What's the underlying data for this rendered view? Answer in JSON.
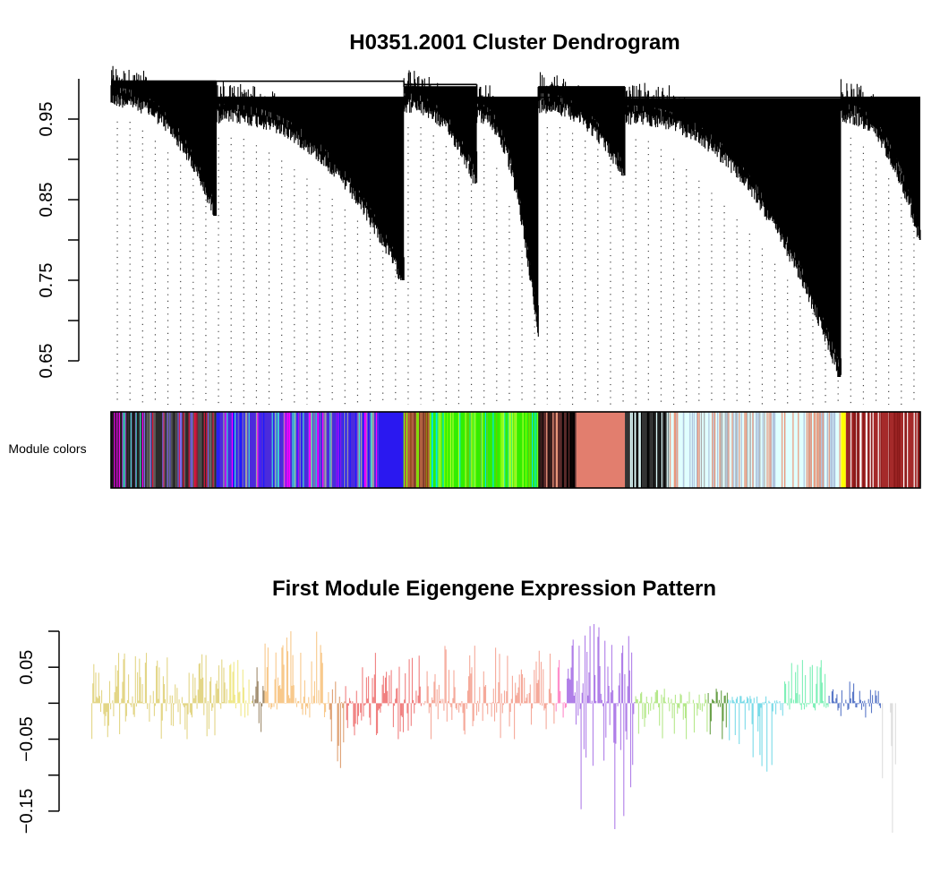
{
  "chart_data": [
    {
      "type": "dendrogram",
      "title": "H0351.2001 Cluster Dendrogram",
      "ylim": [
        0.62,
        1.0
      ],
      "yticks": [
        0.65,
        0.75,
        0.85,
        0.95
      ],
      "ytick_labels": [
        "0.65",
        "0.75",
        "0.85",
        "0.95"
      ],
      "color_bar_label": "Module colors",
      "top_merges": [
        {
          "name": "group-a",
          "members": [
            "branch-1",
            "branch-2"
          ],
          "height": 0.997
        },
        {
          "name": "group-b",
          "members": [
            "branch-3",
            "branch-4"
          ],
          "height": 0.993
        },
        {
          "name": "group-c",
          "members": [
            "branch-5",
            "branch-6"
          ],
          "height": 0.99
        },
        {
          "name": "group-d",
          "members": [
            "group-c",
            "branch-7"
          ],
          "height": 0.977
        }
      ],
      "branches": [
        {
          "name": "branch-1",
          "range": [
            0.0,
            0.13
          ],
          "top": 0.997,
          "min_leaf": 0.83
        },
        {
          "name": "branch-2",
          "range": [
            0.13,
            0.362
          ],
          "top": 0.977,
          "min_leaf": 0.75
        },
        {
          "name": "branch-3",
          "range": [
            0.362,
            0.452
          ],
          "top": 0.99,
          "min_leaf": 0.87
        },
        {
          "name": "branch-4",
          "range": [
            0.452,
            0.528
          ],
          "top": 0.977,
          "min_leaf": 0.68
        },
        {
          "name": "branch-5",
          "range": [
            0.528,
            0.635
          ],
          "top": 0.99,
          "min_leaf": 0.88
        },
        {
          "name": "branch-6",
          "range": [
            0.635,
            0.902
          ],
          "top": 0.975,
          "min_leaf": 0.63
        },
        {
          "name": "branch-7",
          "range": [
            0.902,
            1.0
          ],
          "top": 0.977,
          "min_leaf": 0.8
        }
      ],
      "module_color_segments": [
        {
          "range": [
            0.0,
            0.04
          ],
          "color": "#1a1a1a",
          "mix": [
            "#40e0d0",
            "#ff00ff",
            "#333333"
          ]
        },
        {
          "range": [
            0.04,
            0.13
          ],
          "color": "#2b2b2b",
          "mix": [
            "#dc143c",
            "#7b68ee",
            "#666666"
          ]
        },
        {
          "range": [
            0.13,
            0.33
          ],
          "color": "#4b2bdc",
          "mix": [
            "#ff00ff",
            "#40e0d0",
            "#a0a0a0",
            "#1a1aff"
          ]
        },
        {
          "range": [
            0.33,
            0.362
          ],
          "color": "#2a18f0",
          "mix": []
        },
        {
          "range": [
            0.362,
            0.395
          ],
          "color": "#b06040",
          "mix": [
            "#7a3a2a",
            "#7fff00",
            "#8b4513"
          ]
        },
        {
          "range": [
            0.395,
            0.528
          ],
          "color": "#33ee00",
          "mix": [
            "#7fff00",
            "#adff2f",
            "#00e5ee",
            "#66cd00"
          ]
        },
        {
          "range": [
            0.528,
            0.575
          ],
          "color": "#5a2a2a",
          "mix": [
            "#000000",
            "#e9967a"
          ]
        },
        {
          "range": [
            0.575,
            0.635
          ],
          "color": "#e27e6e",
          "mix": []
        },
        {
          "range": [
            0.635,
            0.69
          ],
          "color": "#333333",
          "mix": [
            "#e0ffff",
            "#000000"
          ]
        },
        {
          "range": [
            0.69,
            0.902
          ],
          "color": "#e0ffff",
          "mix": [
            "#b0c4de",
            "#e9967a",
            "#aaaaaa"
          ]
        },
        {
          "range": [
            0.902,
            0.908
          ],
          "color": "#ffff00",
          "mix": []
        },
        {
          "range": [
            0.908,
            1.0
          ],
          "color": "#a52a2a",
          "mix": [
            "#ffffff",
            "#8b1a1a"
          ]
        }
      ]
    },
    {
      "type": "bar",
      "title": "First Module Eigengene Expression Pattern",
      "ylim": [
        -0.18,
        0.1
      ],
      "yticks": [
        -0.15,
        -0.05,
        0.05
      ],
      "ytick_labels": [
        "−0.15",
        "−0.05",
        "0.05"
      ],
      "segments": [
        {
          "range": [
            0.0,
            0.17
          ],
          "color": "#e3d687",
          "max": 0.07,
          "min": -0.05
        },
        {
          "range": [
            0.17,
            0.2
          ],
          "color": "#f0e88a",
          "max": 0.06,
          "min": -0.02
        },
        {
          "range": [
            0.2,
            0.215
          ],
          "color": "#a08c6e",
          "max": 0.05,
          "min": -0.04
        },
        {
          "range": [
            0.215,
            0.295
          ],
          "color": "#f8c98c",
          "max": 0.1,
          "min": -0.02
        },
        {
          "range": [
            0.295,
            0.315
          ],
          "color": "#dea072",
          "max": 0.03,
          "min": -0.09
        },
        {
          "range": [
            0.315,
            0.41
          ],
          "color": "#f08080",
          "max": 0.07,
          "min": -0.05
        },
        {
          "range": [
            0.41,
            0.575
          ],
          "color": "#f5a99a",
          "max": 0.08,
          "min": -0.05
        },
        {
          "range": [
            0.575,
            0.59
          ],
          "color": "#ff88c8",
          "max": 0.06,
          "min": -0.02
        },
        {
          "range": [
            0.59,
            0.675
          ],
          "color": "#b07fe8",
          "max": 0.11,
          "min": -0.175
        },
        {
          "range": [
            0.675,
            0.765
          ],
          "color": "#b5e88a",
          "max": 0.02,
          "min": -0.05
        },
        {
          "range": [
            0.765,
            0.79
          ],
          "color": "#69a049",
          "max": 0.02,
          "min": -0.05
        },
        {
          "range": [
            0.79,
            0.86
          ],
          "color": "#7adbe8",
          "max": 0.01,
          "min": -0.095
        },
        {
          "range": [
            0.86,
            0.915
          ],
          "color": "#7ff0b8",
          "max": 0.06,
          "min": -0.01
        },
        {
          "range": [
            0.915,
            0.98
          ],
          "color": "#5a78c8",
          "max": 0.03,
          "min": -0.02
        },
        {
          "range": [
            0.98,
            1.0
          ],
          "color": "#dddddd",
          "max": 0.0,
          "min": -0.18
        }
      ]
    }
  ]
}
